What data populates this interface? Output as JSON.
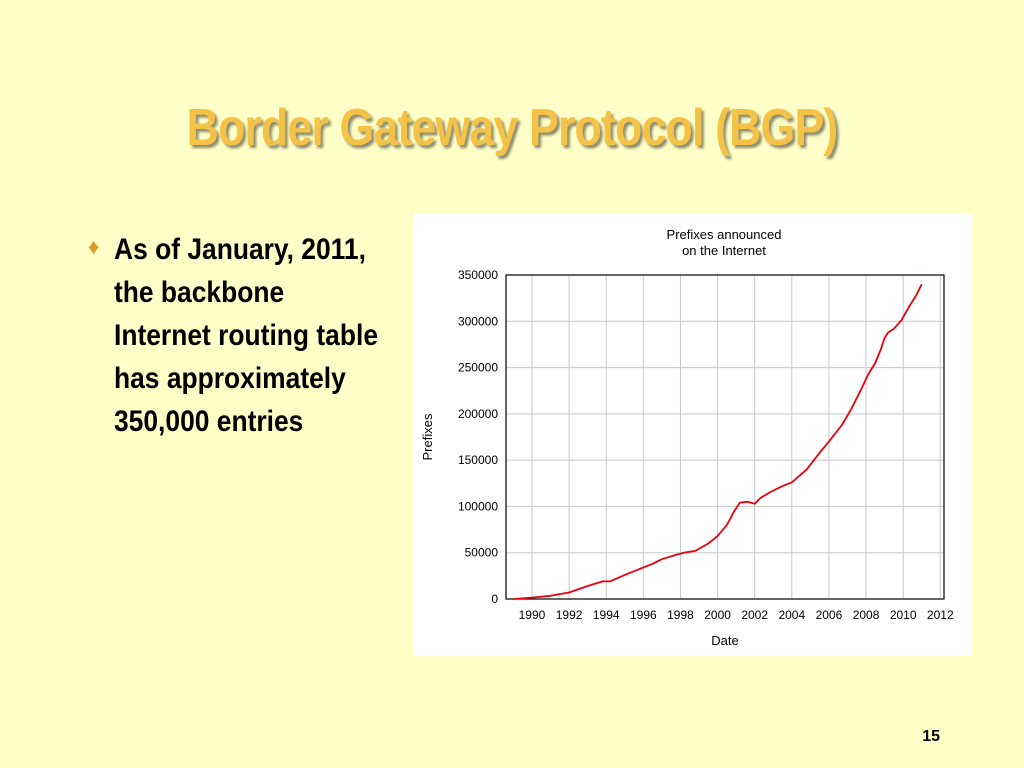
{
  "slide": {
    "title": "Border Gateway Protocol (BGP)",
    "bullet_text": "As of January, 2011, the backbone Internet routing table has approximately 350,000 entries",
    "bullet_icon": "diamond-bullet-icon",
    "page_number": "15",
    "colors": {
      "background": "#ffffc8",
      "title": "#f5c248",
      "bullet": "#d99a2b"
    }
  },
  "chart_data": {
    "type": "line",
    "title_lines": [
      "Prefixes announced",
      "on the Internet"
    ],
    "xlabel": "Date",
    "ylabel": "Prefixes",
    "xlim": [
      1988.6,
      2012.2
    ],
    "ylim": [
      0,
      350000
    ],
    "x_ticks": [
      "1990",
      "1992",
      "1994",
      "1996",
      "1998",
      "2000",
      "2002",
      "2004",
      "2006",
      "2008",
      "2010",
      "2012"
    ],
    "y_ticks": [
      "0",
      "50000",
      "100000",
      "150000",
      "200000",
      "250000",
      "300000",
      "350000"
    ],
    "grid": true,
    "series": [
      {
        "color": "#e8000b",
        "x": [
          1989.0,
          1990.0,
          1991.0,
          1992.0,
          1993.0,
          1993.8,
          1994.2,
          1995.0,
          1996.0,
          1996.5,
          1997.0,
          1997.8,
          1998.2,
          1998.8,
          1999.5,
          2000.0,
          2000.5,
          2000.9,
          2001.2,
          2001.6,
          2002.0,
          2002.3,
          2002.8,
          2003.5,
          2004.0,
          2004.8,
          2005.5,
          2006.0,
          2006.7,
          2007.2,
          2007.7,
          2008.1,
          2008.5,
          2008.8,
          2009.0,
          2009.2,
          2009.5,
          2009.9,
          2010.3,
          2010.7,
          2011.0
        ],
        "y": [
          0,
          1500,
          3500,
          7000,
          14000,
          19000,
          19000,
          26000,
          34000,
          38000,
          43000,
          48000,
          50000,
          52000,
          60000,
          68000,
          80000,
          95000,
          104000,
          105000,
          103000,
          109000,
          115000,
          122000,
          126000,
          140000,
          158000,
          170000,
          188000,
          205000,
          225000,
          242000,
          255000,
          270000,
          282000,
          288000,
          292000,
          301000,
          315000,
          328000,
          340000
        ]
      }
    ]
  }
}
